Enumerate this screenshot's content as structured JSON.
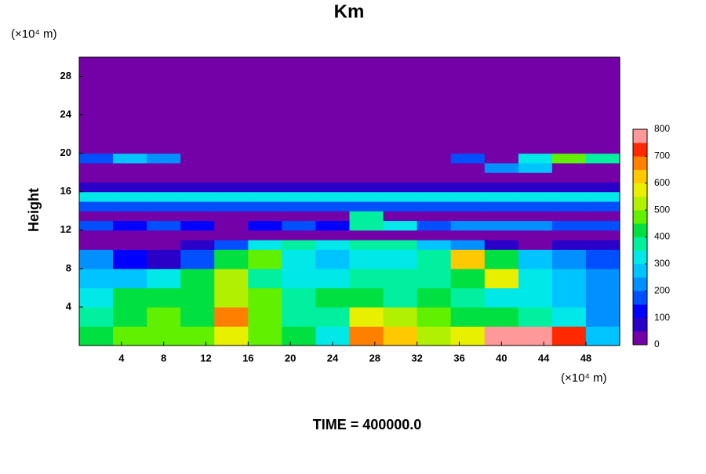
{
  "chart_data": {
    "type": "heatmap",
    "title": "Km",
    "y_unit": "(×10⁴ m)",
    "x_unit": "(×10⁴ m)",
    "y_label": "Height",
    "footer": "TIME = 400000.0",
    "xlim": [
      0,
      51.2
    ],
    "ylim": [
      0,
      30
    ],
    "xticks": [
      4,
      8,
      12,
      16,
      20,
      24,
      28,
      32,
      36,
      40,
      44,
      48
    ],
    "yticks": [
      4,
      8,
      12,
      16,
      20,
      24,
      28
    ],
    "xbins": [
      0,
      3.2,
      6.4,
      9.6,
      12.8,
      16,
      19.2,
      22.4,
      25.6,
      28.8,
      32,
      35.2,
      38.4,
      41.6,
      44.8,
      48,
      51.2
    ],
    "ybins": [
      0,
      2,
      4,
      6,
      8,
      10,
      11,
      12,
      13,
      14,
      15,
      16,
      17,
      18,
      19,
      20,
      30
    ],
    "z": [
      [
        400,
        450,
        450,
        450,
        550,
        450,
        400,
        300,
        650,
        600,
        500,
        550,
        750,
        750,
        700,
        250
      ],
      [
        350,
        400,
        450,
        400,
        650,
        450,
        350,
        350,
        550,
        500,
        450,
        400,
        400,
        350,
        300,
        200
      ],
      [
        300,
        400,
        400,
        400,
        500,
        450,
        350,
        400,
        400,
        350,
        400,
        350,
        300,
        300,
        250,
        200
      ],
      [
        250,
        250,
        300,
        400,
        500,
        350,
        300,
        300,
        350,
        350,
        350,
        400,
        550,
        300,
        250,
        200
      ],
      [
        200,
        100,
        50,
        150,
        400,
        450,
        300,
        250,
        300,
        300,
        350,
        600,
        400,
        250,
        200,
        150
      ],
      [
        0,
        0,
        0,
        50,
        150,
        300,
        350,
        300,
        350,
        350,
        250,
        200,
        50,
        0,
        50,
        50
      ],
      [
        0,
        0,
        0,
        0,
        0,
        0,
        0,
        0,
        0,
        0,
        0,
        0,
        0,
        0,
        0,
        0
      ],
      [
        150,
        100,
        150,
        100,
        0,
        100,
        150,
        100,
        350,
        300,
        150,
        200,
        200,
        200,
        150,
        150
      ],
      [
        0,
        0,
        0,
        0,
        0,
        0,
        0,
        0,
        350,
        0,
        0,
        0,
        0,
        0,
        0,
        0
      ],
      [
        150,
        150,
        150,
        150,
        150,
        150,
        150,
        150,
        150,
        150,
        150,
        150,
        150,
        150,
        150,
        150
      ],
      [
        300,
        300,
        300,
        300,
        300,
        300,
        300,
        300,
        300,
        300,
        300,
        300,
        300,
        300,
        300,
        300
      ],
      [
        50,
        50,
        50,
        50,
        50,
        50,
        50,
        50,
        50,
        50,
        50,
        50,
        50,
        50,
        50,
        50
      ],
      [
        0,
        0,
        0,
        0,
        0,
        0,
        0,
        0,
        0,
        0,
        0,
        0,
        0,
        0,
        0,
        0
      ],
      [
        0,
        0,
        0,
        0,
        0,
        0,
        0,
        0,
        0,
        0,
        0,
        0,
        200,
        250,
        0,
        0
      ],
      [
        150,
        250,
        200,
        0,
        0,
        0,
        0,
        0,
        0,
        0,
        0,
        150,
        0,
        300,
        450,
        350
      ],
      [
        0,
        0,
        0,
        0,
        0,
        0,
        0,
        0,
        0,
        0,
        0,
        0,
        0,
        0,
        0,
        0
      ]
    ],
    "levels": [
      0,
      50,
      100,
      150,
      200,
      250,
      300,
      350,
      400,
      450,
      500,
      550,
      600,
      650,
      700,
      750,
      800
    ],
    "colors": [
      "#7400a8",
      "#2a00c8",
      "#0000ff",
      "#0050ff",
      "#0090ff",
      "#00c4ff",
      "#00e8e8",
      "#00f0a0",
      "#00e040",
      "#60f000",
      "#b0f000",
      "#e8f000",
      "#ffc800",
      "#ff8000",
      "#ff2800",
      "#ff9999"
    ],
    "colorbar_ticks": [
      0,
      100,
      200,
      300,
      400,
      500,
      600,
      700,
      800
    ]
  }
}
